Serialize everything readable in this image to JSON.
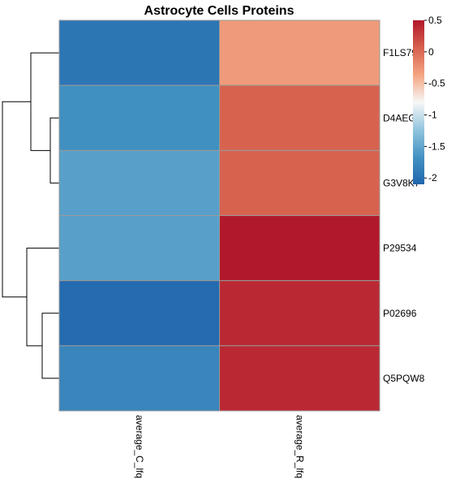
{
  "chart_data": {
    "type": "heatmap",
    "title": "Astrocyte Cells Proteins",
    "rows": [
      "F1LS79",
      "D4AEG2",
      "G3V8K7",
      "P29534",
      "P02696",
      "Q5PQW8"
    ],
    "columns": [
      "average_C_lfq",
      "average_R_lfq"
    ],
    "values": [
      [
        -1.95,
        -0.3
      ],
      [
        -1.7,
        0.05
      ],
      [
        -1.55,
        0.05
      ],
      [
        -1.55,
        0.5
      ],
      [
        -2.05,
        0.4
      ],
      [
        -1.8,
        0.4
      ]
    ],
    "color_scale": {
      "min": -2.1,
      "max": 0.5,
      "ticks": [
        0.5,
        0,
        -0.5,
        -1,
        -1.5,
        -2
      ],
      "colors": [
        "#2166AC",
        "#4393C3",
        "#92C5DE",
        "#F7F7F7",
        "#F4A582",
        "#D6604D",
        "#B2182B"
      ],
      "legend_position": "top-right"
    },
    "row_dendrogram": true,
    "cell_border_color": "#999999"
  }
}
